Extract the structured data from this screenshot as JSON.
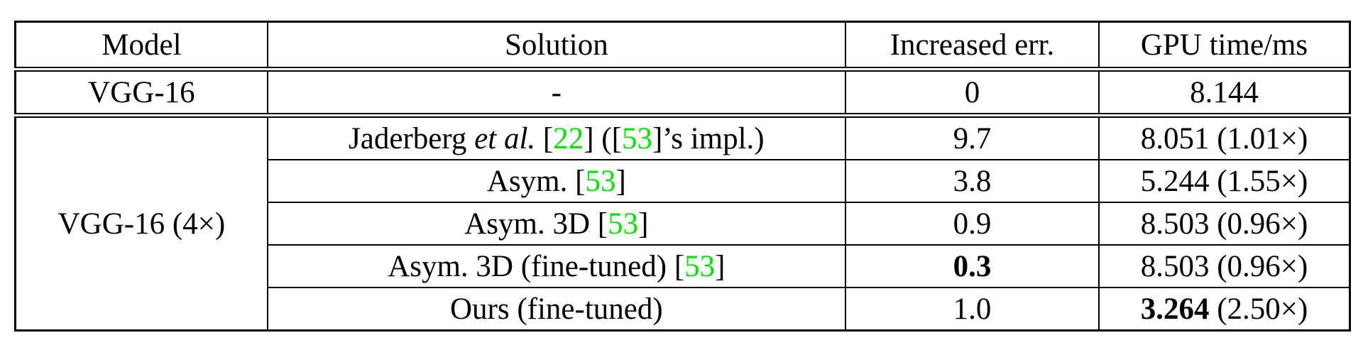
{
  "colors": {
    "citation_green": "#00e800",
    "border": "#000000",
    "text": "#000000",
    "background": "#ffffff"
  },
  "table": {
    "headers": [
      "Model",
      "Solution",
      "Increased err.",
      "GPU time/ms"
    ],
    "rows": [
      {
        "model": {
          "segments": [
            {
              "text": "VGG-16"
            }
          ],
          "rowspan": 1
        },
        "separator": "double",
        "solution": [
          {
            "text": "-"
          }
        ],
        "err": [
          {
            "text": "0"
          }
        ],
        "gpu": [
          {
            "text": "8.144"
          }
        ]
      },
      {
        "model": {
          "segments": [
            {
              "text": "VGG-16 (4×)"
            }
          ],
          "rowspan": 5
        },
        "solution": [
          {
            "text": "Jaderberg "
          },
          {
            "text": "et al.",
            "italic": true
          },
          {
            "text": " ["
          },
          {
            "text": "22",
            "cite": true
          },
          {
            "text": "] (["
          },
          {
            "text": "53",
            "cite": true
          },
          {
            "text": "]’s impl.)"
          }
        ],
        "err": [
          {
            "text": "9.7"
          }
        ],
        "gpu": [
          {
            "text": "8.051 (1.01×)"
          }
        ]
      },
      {
        "solution": [
          {
            "text": "Asym. ["
          },
          {
            "text": "53",
            "cite": true
          },
          {
            "text": "]"
          }
        ],
        "err": [
          {
            "text": "3.8"
          }
        ],
        "gpu": [
          {
            "text": "5.244 (1.55×)"
          }
        ]
      },
      {
        "solution": [
          {
            "text": "Asym. 3D ["
          },
          {
            "text": "53",
            "cite": true
          },
          {
            "text": "]"
          }
        ],
        "err": [
          {
            "text": "0.9"
          }
        ],
        "gpu": [
          {
            "text": "8.503 (0.96×)"
          }
        ]
      },
      {
        "solution": [
          {
            "text": "Asym. 3D (fine-tuned) ["
          },
          {
            "text": "53",
            "cite": true
          },
          {
            "text": "]"
          }
        ],
        "err": [
          {
            "text": "0.3",
            "bold": true
          }
        ],
        "gpu": [
          {
            "text": "8.503 (0.96×)"
          }
        ]
      },
      {
        "solution": [
          {
            "text": "Ours (fine-tuned)"
          }
        ],
        "err": [
          {
            "text": "1.0"
          }
        ],
        "gpu": [
          {
            "text": "3.264",
            "bold": true
          },
          {
            "text": " (2.50×)"
          }
        ]
      }
    ]
  }
}
